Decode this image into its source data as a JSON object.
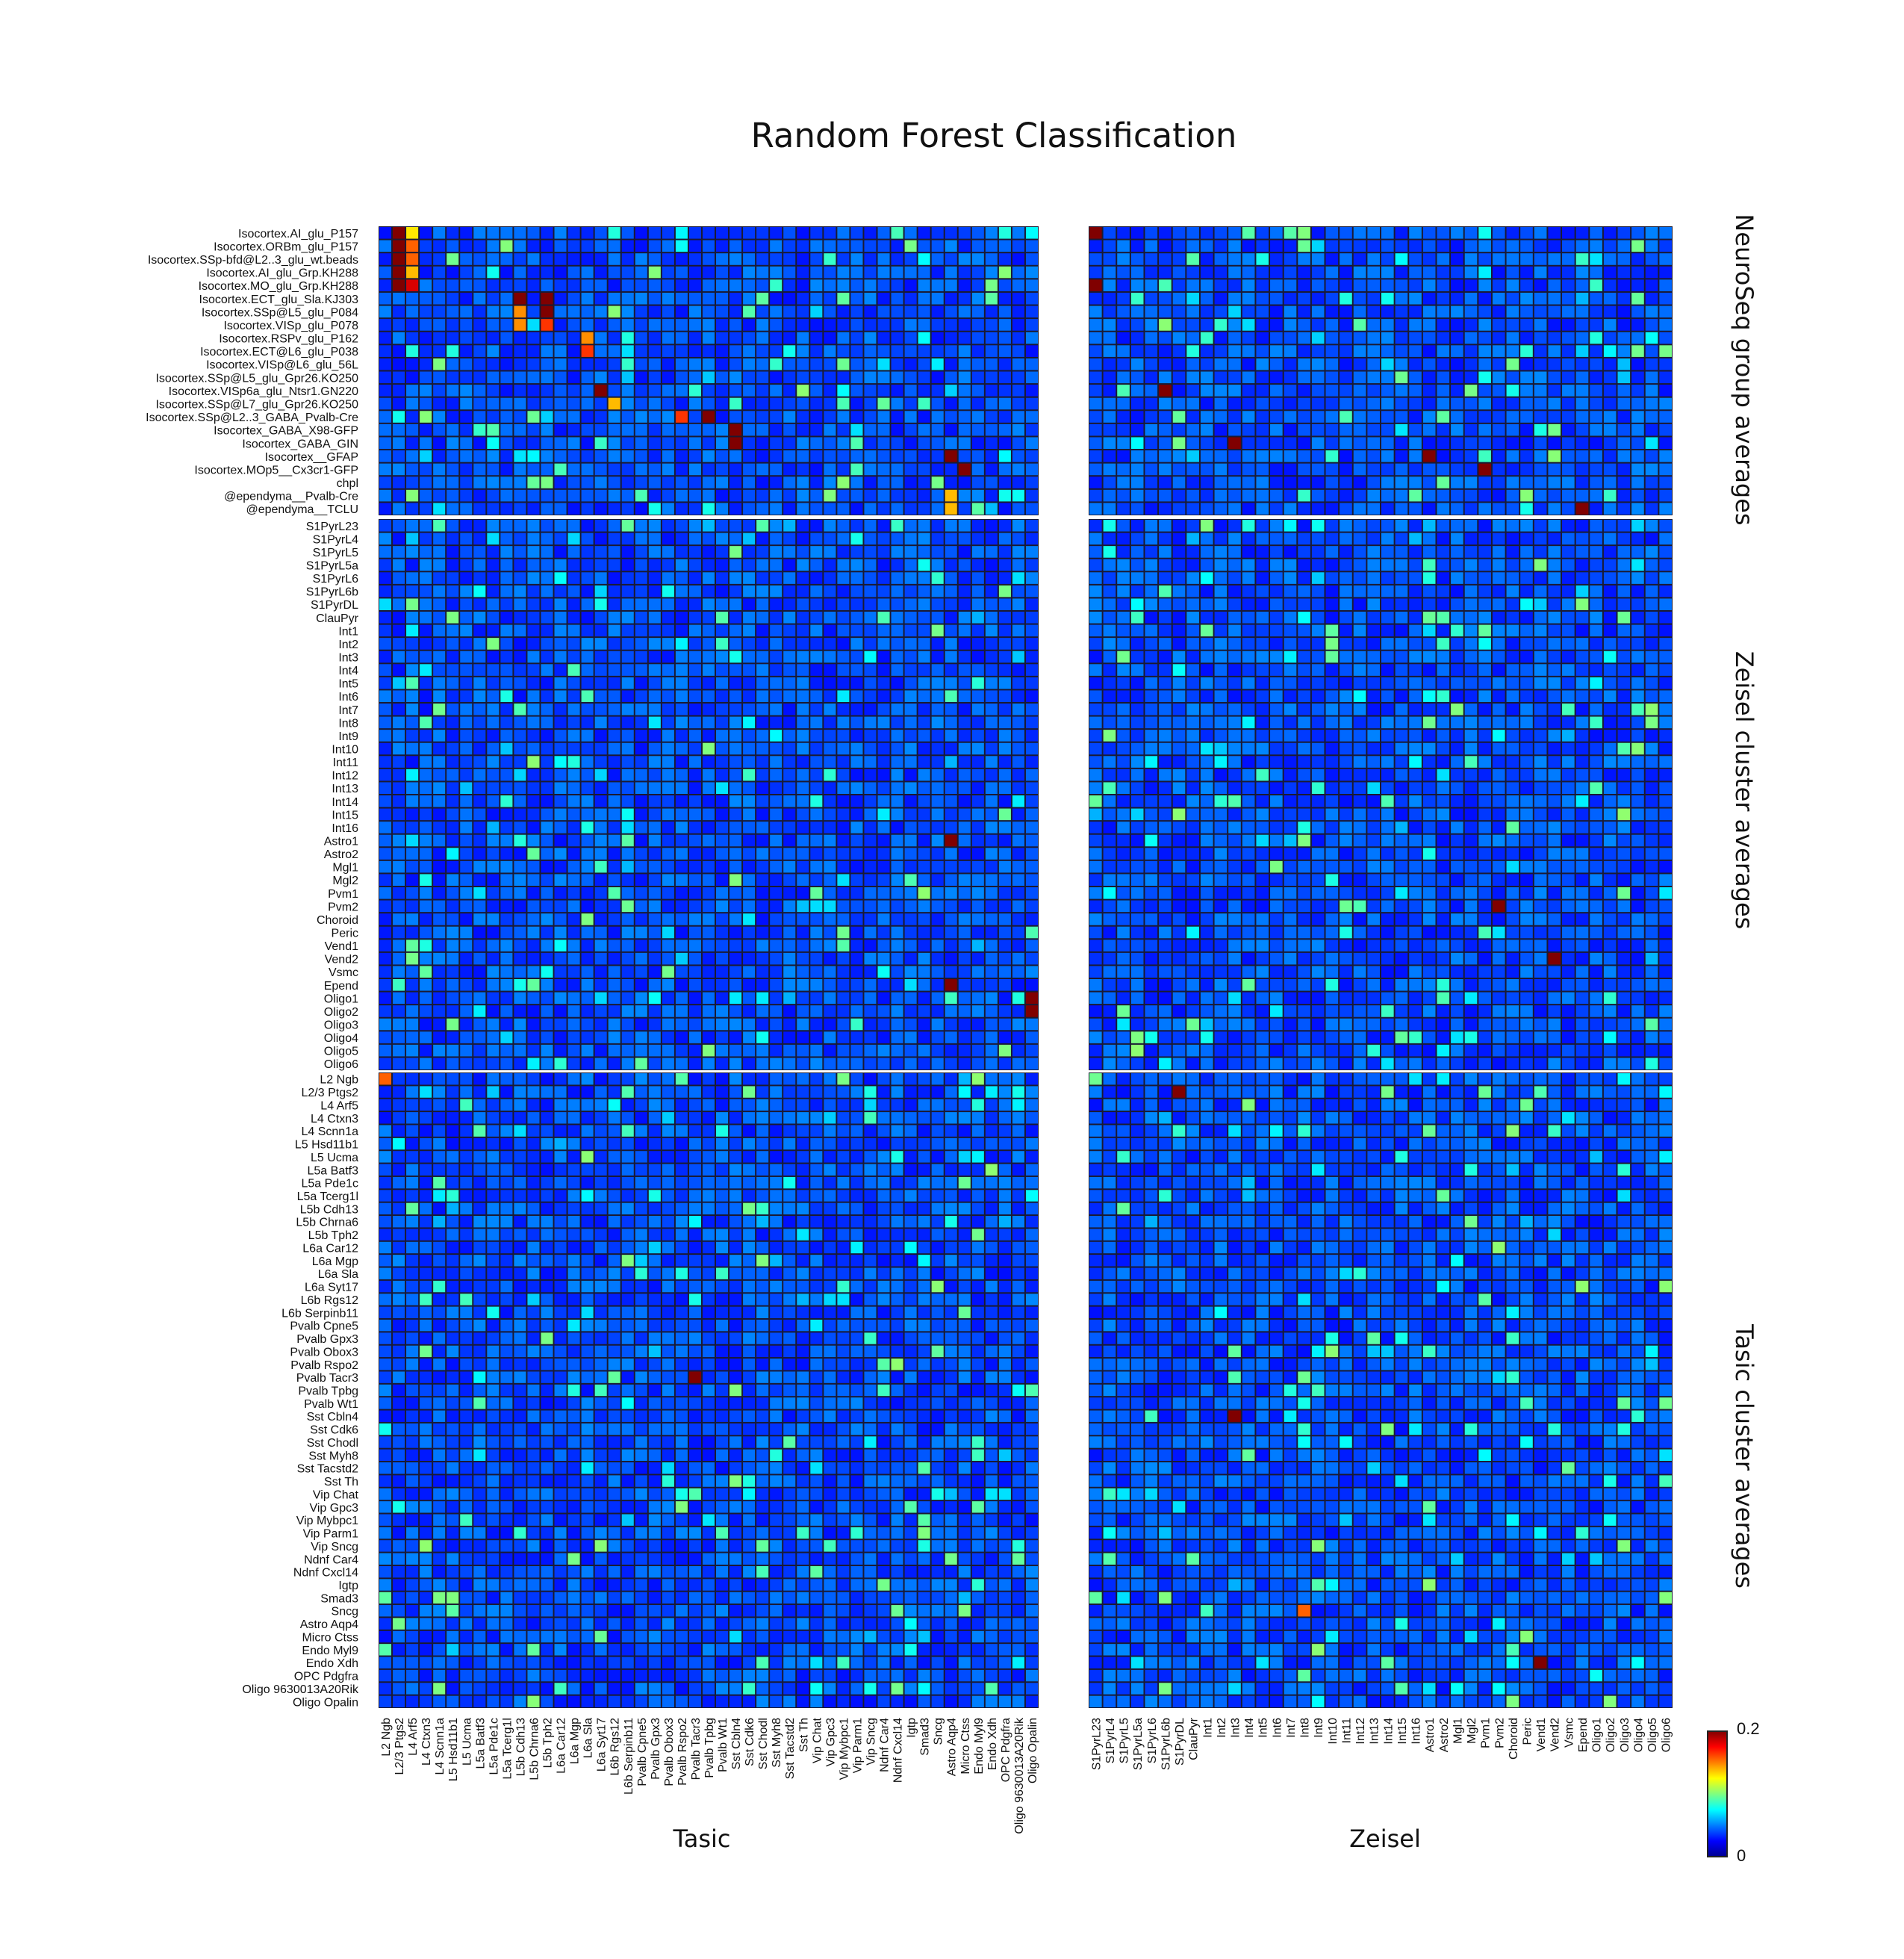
{
  "chart_data": {
    "type": "heatmap",
    "title": "Random Forest Classification",
    "row_groups": [
      {
        "label": "NeuroSeq group averages",
        "rows": [
          "Isocortex.AI_glu_P157",
          "Isocortex.ORBm_glu_P157",
          "Isocortex.SSp-bfd@L2..3_glu_wt.beads",
          "Isocortex.AI_glu_Grp.KH288",
          "Isocortex.MO_glu_Grp.KH288",
          "Isocortex.ECT_glu_Sla.KJ303",
          "Isocortex.SSp@L5_glu_P084",
          "Isocortex.VISp_glu_P078",
          "Isocortex.RSPv_glu_P162",
          "Isocortex.ECT@L6_glu_P038",
          "Isocortex.VISp@L6_glu_56L",
          "Isocortex.SSp@L5_glu_Gpr26.KO250",
          "Isocortex.VISp6a_glu_Ntsr1.GN220",
          "Isocortex.SSp@L7_glu_Gpr26.KO250",
          "Isocortex.SSp@L2..3_GABA_Pvalb-Cre",
          "Isocortex_GABA_X98-GFP",
          "Isocortex_GABA_GIN",
          "Isocortex__GFAP",
          "Isocortex.MOp5__Cx3cr1-GFP",
          "chpl",
          "@ependyma__Pvalb-Cre",
          "@ependyma__TCLU"
        ]
      },
      {
        "label": "Zeisel cluster averages",
        "rows": [
          "S1PyrL23",
          "S1PyrL4",
          "S1PyrL5",
          "S1PyrL5a",
          "S1PyrL6",
          "S1PyrL6b",
          "S1PyrDL",
          "ClauPyr",
          "Int1",
          "Int2",
          "Int3",
          "Int4",
          "Int5",
          "Int6",
          "Int7",
          "Int8",
          "Int9",
          "Int10",
          "Int11",
          "Int12",
          "Int13",
          "Int14",
          "Int15",
          "Int16",
          "Astro1",
          "Astro2",
          "Mgl1",
          "Mgl2",
          "Pvm1",
          "Pvm2",
          "Choroid",
          "Peric",
          "Vend1",
          "Vend2",
          "Vsmc",
          "Epend",
          "Oligo1",
          "Oligo2",
          "Oligo3",
          "Oligo4",
          "Oligo5",
          "Oligo6"
        ]
      },
      {
        "label": "Tasic cluster averages",
        "rows": [
          "L2 Ngb",
          "L2/3 Ptgs2",
          "L4 Arf5",
          "L4 Ctxn3",
          "L4 Scnn1a",
          "L5 Hsd11b1",
          "L5 Ucma",
          "L5a Batf3",
          "L5a Pde1c",
          "L5a Tcerg1l",
          "L5b Cdh13",
          "L5b Chrna6",
          "L5b Tph2",
          "L6a Car12",
          "L6a Mgp",
          "L6a Sla",
          "L6a Syt17",
          "L6b Rgs12",
          "L6b Serpinb11",
          "Pvalb Cpne5",
          "Pvalb Gpx3",
          "Pvalb Obox3",
          "Pvalb Rspo2",
          "Pvalb Tacr3",
          "Pvalb Tpbg",
          "Pvalb Wt1",
          "Sst Cbln4",
          "Sst Cdk6",
          "Sst Chodl",
          "Sst Myh8",
          "Sst Tacstd2",
          "Sst Th",
          "Vip Chat",
          "Vip Gpc3",
          "Vip Mybpc1",
          "Vip Parm1",
          "Vip Sncg",
          "Ndnf Car4",
          "Ndnf Cxcl14",
          "Igtp",
          "Smad3",
          "Sncg",
          "Astro Aqp4",
          "Micro Ctss",
          "Endo Myl9",
          "Endo Xdh",
          "OPC Pdgfra",
          "Oligo 9630013A20Rik",
          "Oligo Opalin"
        ]
      }
    ],
    "column_groups": [
      {
        "label": "Tasic",
        "columns": [
          "L2 Ngb",
          "L2/3 Ptgs2",
          "L4 Arf5",
          "L4 Ctxn3",
          "L4 Scnn1a",
          "L5 Hsd11b1",
          "L5 Ucma",
          "L5a Batf3",
          "L5a Pde1c",
          "L5a Tcerg1l",
          "L5b Cdh13",
          "L5b Chrna6",
          "L5b Tph2",
          "L6a Car12",
          "L6a Mgp",
          "L6a Sla",
          "L6a Syt17",
          "L6b Rgs12",
          "L6b Serpinb11",
          "Pvalb Cpne5",
          "Pvalb Gpx3",
          "Pvalb Obox3",
          "Pvalb Rspo2",
          "Pvalb Tacr3",
          "Pvalb Tpbg",
          "Pvalb Wt1",
          "Sst Cbln4",
          "Sst Cdk6",
          "Sst Chodl",
          "Sst Myh8",
          "Sst Tacstd2",
          "Sst Th",
          "Vip Chat",
          "Vip Gpc3",
          "Vip Mybpc1",
          "Vip Parm1",
          "Vip Sncg",
          "Ndnf Car4",
          "Ndnf Cxcl14",
          "Igtp",
          "Smad3",
          "Sncg",
          "Astro Aqp4",
          "Micro Ctss",
          "Endo Myl9",
          "Endo Xdh",
          "OPC Pdgfra",
          "Oligo 9630013A20Rik",
          "Oligo Opalin"
        ]
      },
      {
        "label": "Zeisel",
        "columns": [
          "S1PyrL23",
          "S1PyrL4",
          "S1PyrL5",
          "S1PyrL5a",
          "S1PyrL6",
          "S1PyrL6b",
          "S1PyrDL",
          "ClauPyr",
          "Int1",
          "Int2",
          "Int3",
          "Int4",
          "Int5",
          "Int6",
          "Int7",
          "Int8",
          "Int9",
          "Int10",
          "Int11",
          "Int12",
          "Int13",
          "Int14",
          "Int15",
          "Int16",
          "Astro1",
          "Astro2",
          "Mgl1",
          "Mgl2",
          "Pvm1",
          "Pvm2",
          "Choroid",
          "Peric",
          "Vend1",
          "Vend2",
          "Vsmc",
          "Epend",
          "Oligo1",
          "Oligo2",
          "Oligo3",
          "Oligo4",
          "Oligo5",
          "Oligo6"
        ]
      }
    ],
    "colorbar": {
      "min": 0,
      "max": 0.2,
      "min_label": "0",
      "max_label": "0.2",
      "colormap": "jet"
    },
    "highlights": [
      {
        "panel": "NeuroSeq-Tasic",
        "row": 0,
        "col": 1,
        "value": 0.2
      },
      {
        "panel": "NeuroSeq-Tasic",
        "row": 0,
        "col": 2,
        "value": 0.12
      },
      {
        "panel": "NeuroSeq-Tasic",
        "row": 1,
        "col": 1,
        "value": 0.2
      },
      {
        "panel": "NeuroSeq-Tasic",
        "row": 1,
        "col": 2,
        "value": 0.15
      },
      {
        "panel": "NeuroSeq-Tasic",
        "row": 2,
        "col": 1,
        "value": 0.2
      },
      {
        "panel": "NeuroSeq-Tasic",
        "row": 2,
        "col": 2,
        "value": 0.15
      },
      {
        "panel": "NeuroSeq-Tasic",
        "row": 3,
        "col": 1,
        "value": 0.2
      },
      {
        "panel": "NeuroSeq-Tasic",
        "row": 3,
        "col": 2,
        "value": 0.13
      },
      {
        "panel": "NeuroSeq-Tasic",
        "row": 4,
        "col": 1,
        "value": 0.2
      },
      {
        "panel": "NeuroSeq-Tasic",
        "row": 4,
        "col": 2,
        "value": 0.18
      },
      {
        "panel": "NeuroSeq-Tasic",
        "row": 5,
        "col": 10,
        "value": 0.2
      },
      {
        "panel": "NeuroSeq-Tasic",
        "row": 5,
        "col": 12,
        "value": 0.2
      },
      {
        "panel": "NeuroSeq-Tasic",
        "row": 6,
        "col": 10,
        "value": 0.14
      },
      {
        "panel": "NeuroSeq-Tasic",
        "row": 6,
        "col": 12,
        "value": 0.2
      },
      {
        "panel": "NeuroSeq-Tasic",
        "row": 7,
        "col": 10,
        "value": 0.14
      },
      {
        "panel": "NeuroSeq-Tasic",
        "row": 7,
        "col": 12,
        "value": 0.16
      },
      {
        "panel": "NeuroSeq-Tasic",
        "row": 8,
        "col": 15,
        "value": 0.14
      },
      {
        "panel": "NeuroSeq-Tasic",
        "row": 9,
        "col": 15,
        "value": 0.16
      },
      {
        "panel": "NeuroSeq-Tasic",
        "row": 12,
        "col": 16,
        "value": 0.2
      },
      {
        "panel": "NeuroSeq-Tasic",
        "row": 13,
        "col": 17,
        "value": 0.13
      },
      {
        "panel": "NeuroSeq-Tasic",
        "row": 14,
        "col": 22,
        "value": 0.16
      },
      {
        "panel": "NeuroSeq-Tasic",
        "row": 14,
        "col": 24,
        "value": 0.2
      },
      {
        "panel": "NeuroSeq-Tasic",
        "row": 15,
        "col": 26,
        "value": 0.2
      },
      {
        "panel": "NeuroSeq-Tasic",
        "row": 16,
        "col": 26,
        "value": 0.2
      },
      {
        "panel": "NeuroSeq-Tasic",
        "row": 17,
        "col": 42,
        "value": 0.2
      },
      {
        "panel": "NeuroSeq-Tasic",
        "row": 18,
        "col": 43,
        "value": 0.2
      },
      {
        "panel": "NeuroSeq-Tasic",
        "row": 20,
        "col": 42,
        "value": 0.13
      },
      {
        "panel": "NeuroSeq-Tasic",
        "row": 21,
        "col": 42,
        "value": 0.13
      },
      {
        "panel": "NeuroSeq-Zeisel",
        "row": 0,
        "col": 0,
        "value": 0.2
      },
      {
        "panel": "NeuroSeq-Zeisel",
        "row": 4,
        "col": 0,
        "value": 0.2
      },
      {
        "panel": "NeuroSeq-Zeisel",
        "row": 12,
        "col": 5,
        "value": 0.2
      },
      {
        "panel": "NeuroSeq-Zeisel",
        "row": 16,
        "col": 10,
        "value": 0.2
      },
      {
        "panel": "NeuroSeq-Zeisel",
        "row": 17,
        "col": 24,
        "value": 0.2
      },
      {
        "panel": "NeuroSeq-Zeisel",
        "row": 18,
        "col": 28,
        "value": 0.2
      },
      {
        "panel": "NeuroSeq-Zeisel",
        "row": 21,
        "col": 35,
        "value": 0.2
      },
      {
        "panel": "Zeisel-Tasic",
        "row": 36,
        "col": 48,
        "value": 0.2
      },
      {
        "panel": "Zeisel-Tasic",
        "row": 37,
        "col": 48,
        "value": 0.2
      },
      {
        "panel": "Zeisel-Tasic",
        "row": 24,
        "col": 42,
        "value": 0.2
      },
      {
        "panel": "Zeisel-Tasic",
        "row": 35,
        "col": 42,
        "value": 0.2
      },
      {
        "panel": "Zeisel-Zeisel",
        "row": 29,
        "col": 29,
        "value": 0.2
      },
      {
        "panel": "Zeisel-Zeisel",
        "row": 33,
        "col": 33,
        "value": 0.2
      },
      {
        "panel": "Tasic-Tasic",
        "row": 0,
        "col": 0,
        "value": 0.15
      },
      {
        "panel": "Tasic-Tasic",
        "row": 23,
        "col": 23,
        "value": 0.2
      },
      {
        "panel": "Tasic-Zeisel",
        "row": 1,
        "col": 6,
        "value": 0.2
      },
      {
        "panel": "Tasic-Zeisel",
        "row": 26,
        "col": 10,
        "value": 0.2
      },
      {
        "panel": "Tasic-Zeisel",
        "row": 41,
        "col": 15,
        "value": 0.15
      },
      {
        "panel": "Tasic-Zeisel",
        "row": 45,
        "col": 32,
        "value": 0.2
      }
    ]
  }
}
